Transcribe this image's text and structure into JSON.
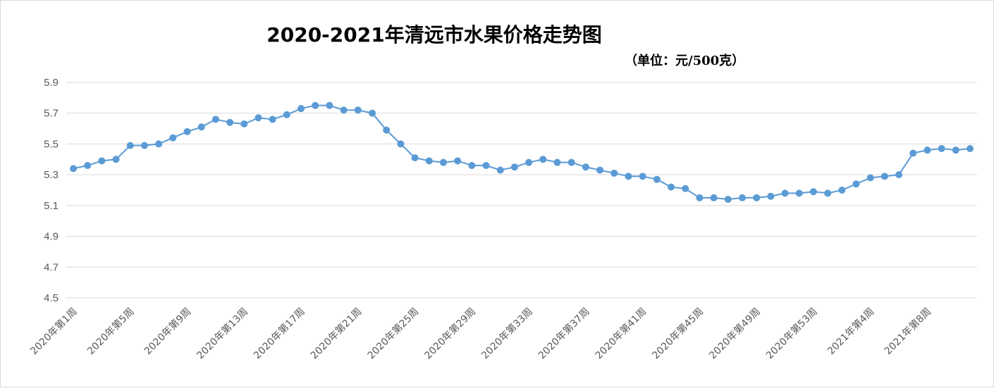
{
  "chart_data": {
    "type": "line",
    "title": "2020-2021年清远市水果价格走势图",
    "unit_label": "（单位：元/500克）",
    "xlabel": "",
    "ylabel": "",
    "ylim": [
      4.5,
      5.9
    ],
    "yticks": [
      "5.9",
      "5.7",
      "5.5",
      "5.3",
      "5.1",
      "4.9",
      "4.7",
      "4.5"
    ],
    "grid": true,
    "legend": "none",
    "colors": {
      "series": "#5b9bd5",
      "grid": "#d9d9d9",
      "tick_text": "#595959"
    },
    "tick_labels": [
      "2020年第1周",
      "2020年第5周",
      "2020年第9周",
      "2020年第13周",
      "2020年第17周",
      "2020年第21周",
      "2020年第25周",
      "2020年第29周",
      "2020年第33周",
      "2020年第37周",
      "2020年第41周",
      "2020年第45周",
      "2020年第49周",
      "2020年第53周",
      "2021年第4周",
      "2021年第8周"
    ],
    "values": [
      5.34,
      5.36,
      5.39,
      5.4,
      5.49,
      5.49,
      5.5,
      5.54,
      5.58,
      5.61,
      5.66,
      5.64,
      5.63,
      5.67,
      5.66,
      5.69,
      5.73,
      5.75,
      5.75,
      5.72,
      5.72,
      5.7,
      5.59,
      5.5,
      5.41,
      5.39,
      5.38,
      5.39,
      5.36,
      5.36,
      5.33,
      5.35,
      5.38,
      5.4,
      5.38,
      5.38,
      5.35,
      5.33,
      5.31,
      5.29,
      5.29,
      5.27,
      5.22,
      5.21,
      5.15,
      5.15,
      5.14,
      5.15,
      5.15,
      5.16,
      5.18,
      5.18,
      5.19,
      5.18,
      5.2,
      5.24,
      5.28,
      5.29,
      5.3,
      5.44,
      5.46,
      5.47,
      5.46,
      5.47
    ]
  }
}
